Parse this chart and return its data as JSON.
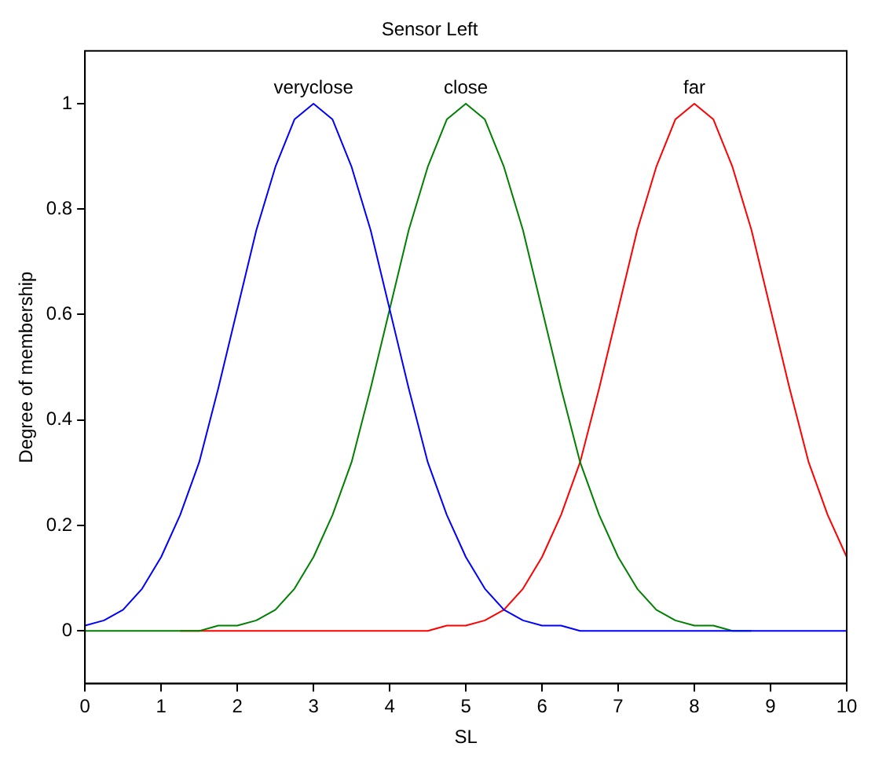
{
  "chart_data": {
    "type": "line",
    "title": "Sensor Left",
    "xlabel": "SL",
    "ylabel": "Degree of membership",
    "x": [
      0,
      0.25,
      0.5,
      0.75,
      1,
      1.25,
      1.5,
      1.75,
      2,
      2.25,
      2.5,
      2.75,
      3,
      3.25,
      3.5,
      3.75,
      4,
      4.25,
      4.5,
      4.75,
      5,
      5.25,
      5.5,
      5.75,
      6,
      6.25,
      6.5,
      6.75,
      7,
      7.25,
      7.5,
      7.75,
      8,
      8.25,
      8.5,
      8.75,
      9,
      9.25,
      9.5,
      9.75,
      10
    ],
    "series": [
      {
        "name": "veryclose",
        "color": "#0000ff",
        "values": [
          0.01,
          0.02,
          0.04,
          0.08,
          0.14,
          0.22,
          0.32,
          0.46,
          0.61,
          0.76,
          0.88,
          0.97,
          1,
          0.97,
          0.88,
          0.76,
          0.61,
          0.46,
          0.32,
          0.22,
          0.14,
          0.08,
          0.04,
          0.02,
          0.01,
          0.01,
          0,
          0,
          0,
          0,
          0,
          0,
          0,
          0,
          0,
          0,
          0,
          0,
          0,
          0,
          0
        ]
      },
      {
        "name": "close",
        "color": "#008000",
        "values": [
          0,
          0,
          0,
          0,
          0,
          0,
          0,
          0.01,
          0.01,
          0.02,
          0.04,
          0.08,
          0.14,
          0.22,
          0.32,
          0.46,
          0.61,
          0.76,
          0.88,
          0.97,
          1,
          0.97,
          0.88,
          0.76,
          0.61,
          0.46,
          0.32,
          0.22,
          0.14,
          0.08,
          0.04,
          0.02,
          0.01,
          0.01,
          0,
          0,
          null,
          null,
          null,
          null,
          null
        ]
      },
      {
        "name": "far",
        "color": "#ff0000",
        "values": [
          null,
          null,
          null,
          null,
          null,
          0,
          0,
          0,
          0,
          0,
          0,
          0,
          0,
          0,
          0,
          0,
          0,
          0,
          0,
          0.01,
          0.01,
          0.02,
          0.04,
          0.08,
          0.14,
          0.22,
          0.32,
          0.46,
          0.61,
          0.76,
          0.88,
          0.97,
          1,
          0.97,
          0.88,
          0.76,
          0.61,
          0.46,
          0.32,
          0.22,
          0.14
        ]
      }
    ],
    "xlim": [
      0,
      10
    ],
    "xticks": [
      0,
      1,
      2,
      3,
      4,
      5,
      6,
      7,
      8,
      9,
      10
    ],
    "ylim": [
      -0.1,
      1.1
    ],
    "yticks": [
      0,
      0.2,
      0.4,
      0.6,
      0.8,
      1
    ],
    "grid": false,
    "legend": false,
    "marker": "none",
    "line_style": "solid"
  }
}
